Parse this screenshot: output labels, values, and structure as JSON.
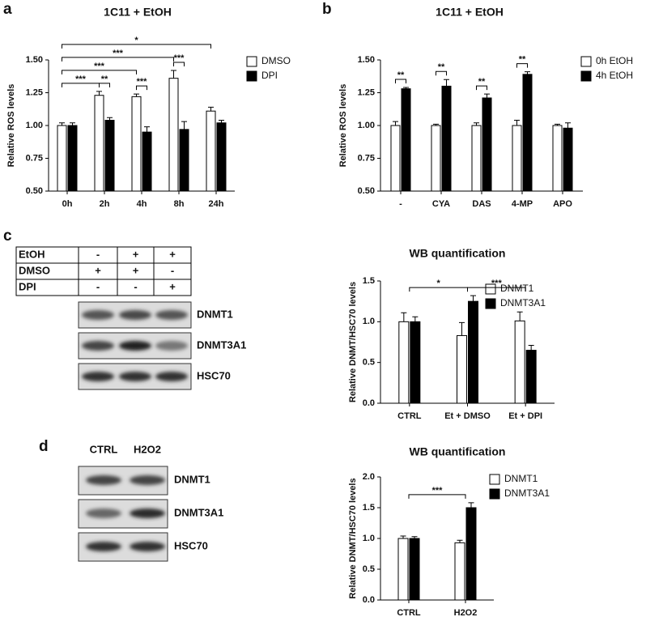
{
  "panel_labels": [
    "a",
    "b",
    "c",
    "d"
  ],
  "chart_data": [
    {
      "type": "bar",
      "title": "1C11 + EtOH",
      "y_label": "Relative ROS levels",
      "categories": [
        "0h",
        "2h",
        "4h",
        "8h",
        "24h"
      ],
      "series": [
        {
          "name": "DMSO",
          "color": "#ffffff",
          "values": [
            1.0,
            1.23,
            1.22,
            1.36,
            1.11
          ],
          "errors": [
            0.02,
            0.03,
            0.02,
            0.06,
            0.03
          ]
        },
        {
          "name": "DPI",
          "color": "#000000",
          "values": [
            1.0,
            1.04,
            0.95,
            0.97,
            1.02
          ],
          "errors": [
            0.02,
            0.02,
            0.04,
            0.06,
            0.02
          ]
        }
      ],
      "ylim": [
        0.5,
        1.5
      ],
      "yticks": [
        {
          "value": 0.5,
          "label": "0.50"
        },
        {
          "value": 0.75,
          "label": "0.75"
        },
        {
          "value": 1.0,
          "label": "1.00"
        },
        {
          "value": 1.25,
          "label": "1.25"
        },
        {
          "value": 1.5,
          "label": "1.50"
        }
      ],
      "brackets": [
        {
          "label": "***",
          "from": [
            "0h",
            "DMSO"
          ],
          "to": [
            "2h",
            "DMSO"
          ]
        },
        {
          "label": "**",
          "from": [
            "2h",
            "DMSO"
          ],
          "to": [
            "2h",
            "DPI"
          ]
        },
        {
          "label": "***",
          "from": [
            "4h",
            "DMSO"
          ],
          "to": [
            "4h",
            "DPI"
          ]
        },
        {
          "label": "***",
          "from": [
            "0h",
            "DMSO"
          ],
          "to": [
            "4h",
            "DMSO"
          ]
        },
        {
          "label": "***",
          "from": [
            "8h",
            "DMSO"
          ],
          "to": [
            "8h",
            "DPI"
          ]
        },
        {
          "label": "***",
          "from": [
            "0h",
            "DMSO"
          ],
          "to": [
            "8h",
            "DMSO"
          ]
        },
        {
          "label": "*",
          "from": [
            "0h",
            "DMSO"
          ],
          "to": [
            "24h",
            "DMSO"
          ]
        }
      ]
    },
    {
      "type": "bar",
      "title": "1C11 + EtOH",
      "y_label": "Relative ROS levels",
      "categories": [
        "-",
        "CYA",
        "DAS",
        "4-MP",
        "APO"
      ],
      "series": [
        {
          "name": "0h EtOH",
          "color": "#ffffff",
          "values": [
            1.0,
            1.0,
            1.0,
            1.0,
            1.0
          ],
          "errors": [
            0.03,
            0.01,
            0.02,
            0.04,
            0.01
          ]
        },
        {
          "name": "4h EtOH",
          "color": "#000000",
          "values": [
            1.28,
            1.3,
            1.21,
            1.39,
            0.98
          ],
          "errors": [
            0.01,
            0.05,
            0.03,
            0.02,
            0.04
          ]
        }
      ],
      "ylim": [
        0.5,
        1.5
      ],
      "yticks": [
        {
          "value": 0.5,
          "label": "0.50"
        },
        {
          "value": 0.75,
          "label": "0.75"
        },
        {
          "value": 1.0,
          "label": "1.00"
        },
        {
          "value": 1.25,
          "label": "1.25"
        },
        {
          "value": 1.5,
          "label": "1.50"
        }
      ],
      "brackets": [
        {
          "label": "**",
          "from": [
            "-",
            "0h EtOH"
          ],
          "to": [
            "-",
            "4h EtOH"
          ]
        },
        {
          "label": "**",
          "from": [
            "CYA",
            "0h EtOH"
          ],
          "to": [
            "CYA",
            "4h EtOH"
          ]
        },
        {
          "label": "**",
          "from": [
            "DAS",
            "0h EtOH"
          ],
          "to": [
            "DAS",
            "4h EtOH"
          ]
        },
        {
          "label": "**",
          "from": [
            "4-MP",
            "0h EtOH"
          ],
          "to": [
            "4-MP",
            "4h EtOH"
          ]
        }
      ]
    },
    {
      "type": "bar",
      "title": "WB quantification",
      "y_label": "Relative DNMT/HSC70 levels",
      "categories": [
        "CTRL",
        "Et + DMSO",
        "Et + DPI"
      ],
      "series": [
        {
          "name": "DNMT1",
          "color": "#ffffff",
          "values": [
            1.0,
            0.83,
            1.01
          ],
          "errors": [
            0.11,
            0.16,
            0.11
          ]
        },
        {
          "name": "DNMT3A1",
          "color": "#000000",
          "values": [
            1.0,
            1.25,
            0.65
          ],
          "errors": [
            0.06,
            0.07,
            0.06
          ]
        }
      ],
      "ylim": [
        0,
        1.5
      ],
      "yticks": [
        {
          "value": 0,
          "label": "0.0"
        },
        {
          "value": 0.5,
          "label": "0.5"
        },
        {
          "value": 1.0,
          "label": "1.0"
        },
        {
          "value": 1.5,
          "label": "1.5"
        }
      ],
      "brackets": [
        {
          "label": "*",
          "from": [
            "CTRL"
          ],
          "to": [
            "Et + DMSO"
          ]
        },
        {
          "label": "***",
          "from": [
            "Et + DMSO"
          ],
          "to": [
            "Et + DPI"
          ]
        }
      ]
    },
    {
      "type": "bar",
      "title": "WB quantification",
      "y_label": "Relative DNMT/HSC70 levels",
      "categories": [
        "CTRL",
        "H2O2"
      ],
      "series": [
        {
          "name": "DNMT1",
          "color": "#ffffff",
          "values": [
            1.0,
            0.93
          ],
          "errors": [
            0.04,
            0.04
          ]
        },
        {
          "name": "DNMT3A1",
          "color": "#000000",
          "values": [
            1.0,
            1.5
          ],
          "errors": [
            0.03,
            0.08
          ]
        }
      ],
      "ylim": [
        0,
        2.0
      ],
      "yticks": [
        {
          "value": 0,
          "label": "0.0"
        },
        {
          "value": 0.5,
          "label": "0.5"
        },
        {
          "value": 1.0,
          "label": "1.0"
        },
        {
          "value": 1.5,
          "label": "1.5"
        },
        {
          "value": 2.0,
          "label": "2.0"
        }
      ],
      "brackets": [
        {
          "label": "***",
          "from": [
            "CTRL"
          ],
          "to": [
            "H2O2"
          ]
        }
      ]
    }
  ],
  "blot_c": {
    "conditions": [
      {
        "label": "EtOH",
        "lanes": [
          "-",
          "+",
          "+"
        ]
      },
      {
        "label": "DMSO",
        "lanes": [
          "+",
          "+",
          "-"
        ]
      },
      {
        "label": "DPI",
        "lanes": [
          "-",
          "-",
          "+"
        ]
      }
    ],
    "proteins": [
      "DNMT1",
      "DNMT3A1",
      "HSC70"
    ]
  },
  "blot_d": {
    "lanes": [
      "CTRL",
      "H2O2"
    ],
    "proteins": [
      "DNMT1",
      "DNMT3A1",
      "HSC70"
    ]
  }
}
